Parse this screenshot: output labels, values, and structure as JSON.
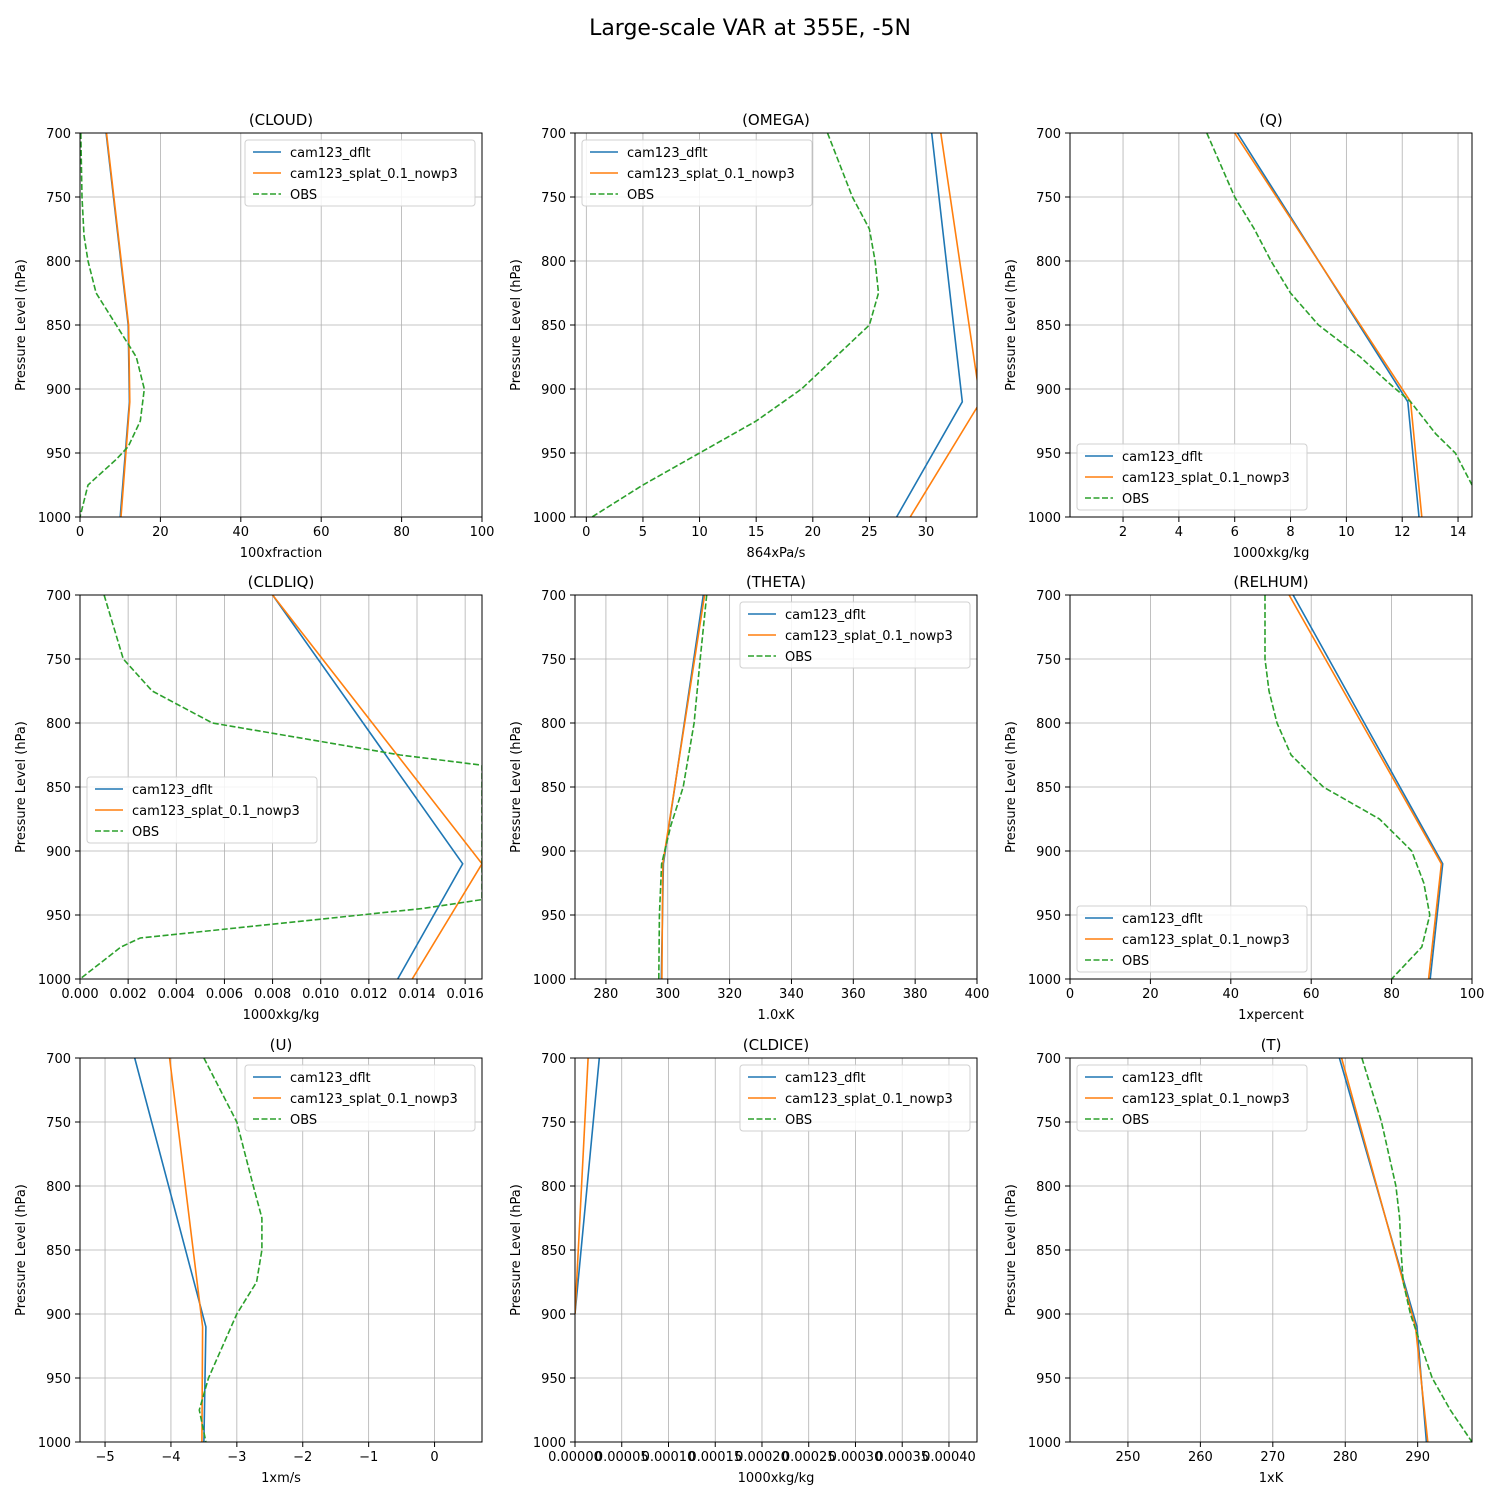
{
  "suptitle": "Large-scale VAR at 355E, -5N",
  "colors": {
    "cam123_dflt": "#1f77b4",
    "cam123_splat_0.1_nowp3": "#ff7f0e",
    "OBS": "#2ca02c"
  },
  "chart_data": [
    {
      "type": "line",
      "title": "(CLOUD)",
      "xlabel": "100xfraction",
      "ylabel": "Pressure Level (hPa)",
      "xlim": [
        0,
        100
      ],
      "ylim": [
        1000,
        700
      ],
      "y_inverted": true,
      "grid": true,
      "legend": "upper-right",
      "xticks": [
        0,
        20,
        40,
        60,
        80,
        100
      ],
      "xtick_labels": [
        "0",
        "20",
        "40",
        "60",
        "80",
        "100"
      ],
      "yticks": [
        700,
        750,
        800,
        850,
        900,
        950,
        1000
      ],
      "series": [
        {
          "name": "cam123_dflt",
          "style": "solid",
          "x": [
            6.5,
            12,
            12.3,
            10
          ],
          "y": [
            700,
            850,
            910,
            1000
          ]
        },
        {
          "name": "cam123_splat_0.1_nowp3",
          "style": "solid",
          "x": [
            6.6,
            12.1,
            12.4,
            10.2
          ],
          "y": [
            700,
            850,
            910,
            1000
          ]
        },
        {
          "name": "OBS",
          "style": "dashed",
          "x": [
            0.2,
            0.5,
            1,
            2,
            4,
            9,
            14,
            16,
            15,
            12,
            9,
            2,
            0
          ],
          "y": [
            700,
            750,
            780,
            800,
            825,
            850,
            875,
            900,
            925,
            945,
            955,
            975,
            1000
          ]
        }
      ]
    },
    {
      "type": "line",
      "title": "(OMEGA)",
      "xlabel": "864xPa/s",
      "ylabel": "Pressure Level (hPa)",
      "xlim": [
        -1,
        34.5
      ],
      "ylim": [
        1000,
        700
      ],
      "y_inverted": true,
      "grid": true,
      "legend": "upper-left",
      "xticks": [
        0,
        5,
        10,
        15,
        20,
        25,
        30
      ],
      "xtick_labels": [
        "0",
        "5",
        "10",
        "15",
        "20",
        "25",
        "30"
      ],
      "yticks": [
        700,
        750,
        800,
        850,
        900,
        950,
        1000
      ],
      "series": [
        {
          "name": "cam123_dflt",
          "style": "solid",
          "x": [
            30.5,
            33.2,
            27.4
          ],
          "y": [
            700,
            910,
            1000
          ]
        },
        {
          "name": "cam123_splat_0.1_nowp3",
          "style": "solid",
          "x": [
            31.3,
            34.8,
            28.6
          ],
          "y": [
            700,
            910,
            1000
          ]
        },
        {
          "name": "OBS",
          "style": "dashed",
          "x": [
            21.3,
            23.5,
            25,
            25.5,
            25.8,
            25,
            22,
            19,
            15,
            10,
            5,
            0.5
          ],
          "y": [
            700,
            750,
            775,
            800,
            825,
            850,
            875,
            900,
            925,
            950,
            975,
            1000
          ]
        }
      ]
    },
    {
      "type": "line",
      "title": "(Q)",
      "xlabel": "1000xkg/kg",
      "ylabel": "Pressure Level (hPa)",
      "xlim": [
        0.1,
        14.5
      ],
      "ylim": [
        1000,
        700
      ],
      "y_inverted": true,
      "grid": true,
      "legend": "lower-left",
      "xticks": [
        2,
        4,
        6,
        8,
        10,
        12,
        14
      ],
      "xtick_labels": [
        "2",
        "4",
        "6",
        "8",
        "10",
        "12",
        "14"
      ],
      "yticks": [
        700,
        750,
        800,
        850,
        900,
        950,
        1000
      ],
      "series": [
        {
          "name": "cam123_dflt",
          "style": "solid",
          "x": [
            6.1,
            12.2,
            12.6
          ],
          "y": [
            700,
            910,
            1000
          ]
        },
        {
          "name": "cam123_splat_0.1_nowp3",
          "style": "solid",
          "x": [
            6.0,
            12.3,
            12.7
          ],
          "y": [
            700,
            910,
            1000
          ]
        },
        {
          "name": "OBS",
          "style": "dashed",
          "x": [
            5,
            6,
            6.7,
            7.3,
            8,
            9,
            10.5,
            11.5,
            12.3,
            13.2,
            13.9,
            14.5
          ],
          "y": [
            700,
            750,
            775,
            800,
            825,
            850,
            875,
            895,
            910,
            935,
            950,
            975
          ]
        }
      ]
    },
    {
      "type": "line",
      "title": "(CLDLIQ)",
      "xlabel": "1000xkg/kg",
      "ylabel": "Pressure Level (hPa)",
      "xlim": [
        0,
        0.0167
      ],
      "ylim": [
        1000,
        700
      ],
      "y_inverted": true,
      "grid": true,
      "legend": "center-left",
      "xticks": [
        0,
        0.002,
        0.004,
        0.006,
        0.008,
        0.01,
        0.012,
        0.014,
        0.016
      ],
      "xtick_labels": [
        "0.000",
        "0.002",
        "0.004",
        "0.006",
        "0.008",
        "0.010",
        "0.012",
        "0.014",
        "0.016"
      ],
      "yticks": [
        700,
        750,
        800,
        850,
        900,
        950,
        1000
      ],
      "series": [
        {
          "name": "cam123_dflt",
          "style": "solid",
          "x": [
            0.008,
            0.0159,
            0.0132
          ],
          "y": [
            700,
            910,
            1000
          ]
        },
        {
          "name": "cam123_splat_0.1_nowp3",
          "style": "solid",
          "x": [
            0.008,
            0.0167,
            0.0138
          ],
          "y": [
            700,
            910,
            1000
          ]
        },
        {
          "name": "OBS",
          "style": "dashed",
          "x": [
            0.001,
            0.0018,
            0.003,
            0.0055,
            0.0133,
            0.0167,
            0.0167,
            0.0142,
            0.0025,
            0.0017,
            0
          ],
          "y": [
            700,
            750,
            775,
            800,
            825,
            833,
            938,
            945,
            968,
            975,
            1000
          ]
        }
      ]
    },
    {
      "type": "line",
      "title": "(THETA)",
      "xlabel": "1.0xK",
      "ylabel": "Pressure Level (hPa)",
      "xlim": [
        270,
        400
      ],
      "ylim": [
        1000,
        700
      ],
      "y_inverted": true,
      "grid": true,
      "legend": "upper-right",
      "xticks": [
        280,
        300,
        320,
        340,
        360,
        380,
        400
      ],
      "xtick_labels": [
        "280",
        "300",
        "320",
        "340",
        "360",
        "380",
        "400"
      ],
      "yticks": [
        700,
        750,
        800,
        850,
        900,
        950,
        1000
      ],
      "series": [
        {
          "name": "cam123_dflt",
          "style": "solid",
          "x": [
            311.5,
            298.6,
            297.9
          ],
          "y": [
            700,
            910,
            1000
          ]
        },
        {
          "name": "cam123_splat_0.1_nowp3",
          "style": "solid",
          "x": [
            311.9,
            298.4,
            298.1
          ],
          "y": [
            700,
            910,
            1000
          ]
        },
        {
          "name": "OBS",
          "style": "dashed",
          "x": [
            312.6,
            310.5,
            308.5,
            305,
            301,
            298,
            297.3,
            297.1
          ],
          "y": [
            700,
            750,
            800,
            850,
            880,
            910,
            950,
            1000
          ]
        }
      ]
    },
    {
      "type": "line",
      "title": "(RELHUM)",
      "xlabel": "1xpercent",
      "ylabel": "Pressure Level (hPa)",
      "xlim": [
        0,
        100
      ],
      "ylim": [
        1000,
        700
      ],
      "y_inverted": true,
      "grid": true,
      "legend": "lower-left",
      "xticks": [
        0,
        20,
        40,
        60,
        80,
        100
      ],
      "xtick_labels": [
        "0",
        "20",
        "40",
        "60",
        "80",
        "100"
      ],
      "yticks": [
        700,
        750,
        800,
        850,
        900,
        950,
        1000
      ],
      "series": [
        {
          "name": "cam123_dflt",
          "style": "solid",
          "x": [
            55.5,
            92.7,
            89.6
          ],
          "y": [
            700,
            910,
            1000
          ]
        },
        {
          "name": "cam123_splat_0.1_nowp3",
          "style": "solid",
          "x": [
            54.5,
            92.4,
            89.2
          ],
          "y": [
            700,
            910,
            1000
          ]
        },
        {
          "name": "OBS",
          "style": "dashed",
          "x": [
            48.5,
            48.5,
            49.5,
            51.5,
            55,
            63,
            77,
            85,
            88,
            89.5,
            87.5,
            80
          ],
          "y": [
            700,
            750,
            775,
            800,
            825,
            850,
            875,
            900,
            925,
            950,
            975,
            1000
          ]
        }
      ]
    },
    {
      "type": "line",
      "title": "(U)",
      "xlabel": "1xm/s",
      "ylabel": "Pressure Level (hPa)",
      "xlim": [
        -5.38,
        0.72
      ],
      "ylim": [
        1000,
        700
      ],
      "y_inverted": true,
      "grid": true,
      "legend": "upper-right",
      "xticks": [
        -5,
        -4,
        -3,
        -2,
        -1,
        0
      ],
      "xtick_labels": [
        "−5",
        "−4",
        "−3",
        "−2",
        "−1",
        "0"
      ],
      "yticks": [
        700,
        750,
        800,
        850,
        900,
        950,
        1000
      ],
      "series": [
        {
          "name": "cam123_dflt",
          "style": "solid",
          "x": [
            -4.55,
            -3.47,
            -3.5
          ],
          "y": [
            700,
            910,
            1000
          ]
        },
        {
          "name": "cam123_splat_0.1_nowp3",
          "style": "solid",
          "x": [
            -4.02,
            -3.52,
            -3.53
          ],
          "y": [
            700,
            910,
            1000
          ]
        },
        {
          "name": "OBS",
          "style": "dashed",
          "x": [
            -3.5,
            -3.0,
            -2.75,
            -2.62,
            -2.62,
            -2.7,
            -3.0,
            -3.43,
            -3.57,
            -3.47
          ],
          "y": [
            700,
            750,
            800,
            825,
            850,
            875,
            900,
            950,
            975,
            1000
          ]
        }
      ]
    },
    {
      "type": "line",
      "title": "(CLDICE)",
      "xlabel": "1000xkg/kg",
      "ylabel": "Pressure Level (hPa)",
      "xlim": [
        0,
        0.00043
      ],
      "ylim": [
        1000,
        700
      ],
      "y_inverted": true,
      "grid": true,
      "legend": "upper-right",
      "xticks": [
        0,
        5e-05,
        0.0001,
        0.00015,
        0.0002,
        0.00025,
        0.0003,
        0.00035,
        0.0004
      ],
      "xtick_labels": [
        "0.00000",
        "0.00005",
        "0.00010",
        "0.00015",
        "0.00020",
        "0.00025",
        "0.00030",
        "0.00035",
        "0.00040"
      ],
      "yticks": [
        700,
        750,
        800,
        850,
        900,
        950,
        1000
      ],
      "series": [
        {
          "name": "cam123_dflt",
          "style": "solid",
          "x": [
            2.6e-05,
            0
          ],
          "y": [
            700,
            900
          ]
        },
        {
          "name": "cam123_splat_0.1_nowp3",
          "style": "solid",
          "x": [
            1.4e-05,
            0
          ],
          "y": [
            700,
            900
          ]
        },
        {
          "name": "OBS",
          "style": "dashed",
          "x": [],
          "y": []
        }
      ]
    },
    {
      "type": "line",
      "title": "(T)",
      "xlabel": "1xK",
      "ylabel": "Pressure Level (hPa)",
      "xlim": [
        242,
        297.5
      ],
      "ylim": [
        1000,
        700
      ],
      "y_inverted": true,
      "grid": true,
      "legend": "upper-left",
      "xticks": [
        250,
        260,
        270,
        280,
        290
      ],
      "xtick_labels": [
        "250",
        "260",
        "270",
        "280",
        "290"
      ],
      "yticks": [
        700,
        750,
        800,
        850,
        900,
        950,
        1000
      ],
      "series": [
        {
          "name": "cam123_dflt",
          "style": "solid",
          "x": [
            279.2,
            289.9,
            291.2
          ],
          "y": [
            700,
            910,
            1000
          ]
        },
        {
          "name": "cam123_splat_0.1_nowp3",
          "style": "solid",
          "x": [
            279.5,
            289.7,
            291.4
          ],
          "y": [
            700,
            910,
            1000
          ]
        },
        {
          "name": "OBS",
          "style": "dashed",
          "x": [
            282.3,
            285,
            287,
            287.5,
            287.7,
            288,
            289,
            292,
            294.5,
            297.5
          ],
          "y": [
            700,
            750,
            800,
            825,
            850,
            875,
            900,
            950,
            975,
            1000
          ]
        }
      ]
    }
  ]
}
